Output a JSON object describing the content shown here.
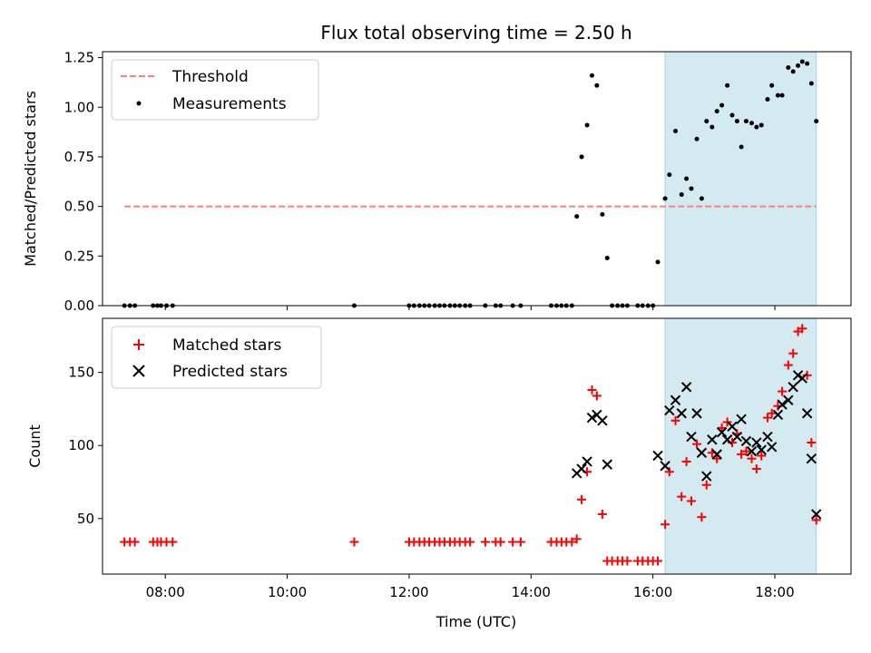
{
  "chart_data": {
    "type": "scatter",
    "title": "Flux total observing time = 2.50 h",
    "xlabel": "Time (UTC)",
    "x_ticks": [
      "08:00",
      "10:00",
      "12:00",
      "14:00",
      "16:00",
      "18:00"
    ],
    "x_tick_hours": [
      8,
      10,
      12,
      14,
      16,
      18
    ],
    "xlim_hours": [
      6.97,
      19.25
    ],
    "highlight_span_hours": [
      16.2,
      18.68
    ],
    "highlight_color": "#d2eaf0",
    "panels": [
      {
        "ylabel": "Matched/Predicted stars",
        "ylim": [
          0,
          1.28
        ],
        "y_ticks": [
          0.0,
          0.25,
          0.5,
          0.75,
          1.0,
          1.25
        ],
        "y_tick_labels": [
          "0.00",
          "0.25",
          "0.50",
          "0.75",
          "1.00",
          "1.25"
        ],
        "threshold": 0.5,
        "threshold_color": "#ff7f7f",
        "legend": {
          "placement": "top-left",
          "entries": [
            "Threshold",
            "Measurements"
          ]
        },
        "series": [
          {
            "name": "Measurements",
            "marker": "dot",
            "color": "#000000",
            "points": [
              [
                7.33,
                0
              ],
              [
                7.42,
                0
              ],
              [
                7.5,
                0
              ],
              [
                7.8,
                0
              ],
              [
                7.87,
                0
              ],
              [
                7.93,
                0
              ],
              [
                8.02,
                0
              ],
              [
                8.12,
                0
              ],
              [
                11.1,
                0
              ],
              [
                12.0,
                0
              ],
              [
                12.08,
                0
              ],
              [
                12.17,
                0
              ],
              [
                12.25,
                0
              ],
              [
                12.33,
                0
              ],
              [
                12.42,
                0
              ],
              [
                12.5,
                0
              ],
              [
                12.58,
                0
              ],
              [
                12.67,
                0
              ],
              [
                12.75,
                0
              ],
              [
                12.83,
                0
              ],
              [
                12.92,
                0
              ],
              [
                13.0,
                0
              ],
              [
                13.25,
                0
              ],
              [
                13.42,
                0
              ],
              [
                13.5,
                0
              ],
              [
                13.7,
                0
              ],
              [
                13.83,
                0
              ],
              [
                14.33,
                0
              ],
              [
                14.42,
                0
              ],
              [
                14.5,
                0
              ],
              [
                14.58,
                0
              ],
              [
                14.67,
                0
              ],
              [
                14.75,
                0.45
              ],
              [
                14.83,
                0.75
              ],
              [
                14.92,
                0.91
              ],
              [
                15.0,
                1.16
              ],
              [
                15.08,
                1.11
              ],
              [
                15.17,
                0.46
              ],
              [
                15.25,
                0.24
              ],
              [
                15.33,
                0
              ],
              [
                15.42,
                0
              ],
              [
                15.5,
                0
              ],
              [
                15.58,
                0
              ],
              [
                15.75,
                0
              ],
              [
                15.83,
                0
              ],
              [
                15.92,
                0
              ],
              [
                16.0,
                0
              ],
              [
                16.08,
                0.22
              ],
              [
                16.2,
                0.54
              ],
              [
                16.27,
                0.66
              ],
              [
                16.37,
                0.88
              ],
              [
                16.47,
                0.56
              ],
              [
                16.55,
                0.64
              ],
              [
                16.63,
                0.59
              ],
              [
                16.72,
                0.84
              ],
              [
                16.8,
                0.54
              ],
              [
                16.88,
                0.93
              ],
              [
                16.97,
                0.9
              ],
              [
                17.05,
                0.98
              ],
              [
                17.13,
                1.01
              ],
              [
                17.22,
                1.11
              ],
              [
                17.3,
                0.96
              ],
              [
                17.38,
                0.93
              ],
              [
                17.45,
                0.8
              ],
              [
                17.53,
                0.93
              ],
              [
                17.62,
                0.92
              ],
              [
                17.7,
                0.9
              ],
              [
                17.78,
                0.91
              ],
              [
                17.88,
                1.04
              ],
              [
                17.95,
                1.11
              ],
              [
                18.05,
                1.06
              ],
              [
                18.12,
                1.06
              ],
              [
                18.22,
                1.2
              ],
              [
                18.3,
                1.18
              ],
              [
                18.38,
                1.21
              ],
              [
                18.45,
                1.23
              ],
              [
                18.53,
                1.22
              ],
              [
                18.6,
                1.12
              ],
              [
                18.68,
                0.93
              ]
            ]
          }
        ]
      },
      {
        "ylabel": "Count",
        "ylim": [
          12,
          187
        ],
        "y_ticks": [
          50,
          100,
          150
        ],
        "y_tick_labels": [
          "50",
          "100",
          "150"
        ],
        "legend": {
          "placement": "top-left",
          "entries": [
            "Matched stars",
            "Predicted stars"
          ]
        },
        "series": [
          {
            "name": "Matched stars",
            "marker": "plus",
            "color": "#ff0000",
            "points": [
              [
                7.33,
                34
              ],
              [
                7.42,
                34
              ],
              [
                7.5,
                34
              ],
              [
                7.8,
                34
              ],
              [
                7.87,
                34
              ],
              [
                7.93,
                34
              ],
              [
                8.02,
                34
              ],
              [
                8.12,
                34
              ],
              [
                11.1,
                34
              ],
              [
                12.0,
                34
              ],
              [
                12.08,
                34
              ],
              [
                12.17,
                34
              ],
              [
                12.25,
                34
              ],
              [
                12.33,
                34
              ],
              [
                12.42,
                34
              ],
              [
                12.5,
                34
              ],
              [
                12.58,
                34
              ],
              [
                12.67,
                34
              ],
              [
                12.75,
                34
              ],
              [
                12.83,
                34
              ],
              [
                12.92,
                34
              ],
              [
                13.0,
                34
              ],
              [
                13.25,
                34
              ],
              [
                13.42,
                34
              ],
              [
                13.5,
                34
              ],
              [
                13.7,
                34
              ],
              [
                13.83,
                34
              ],
              [
                14.33,
                34
              ],
              [
                14.42,
                34
              ],
              [
                14.5,
                34
              ],
              [
                14.58,
                34
              ],
              [
                14.67,
                34
              ],
              [
                14.75,
                36
              ],
              [
                14.83,
                63
              ],
              [
                14.92,
                82
              ],
              [
                15.0,
                138
              ],
              [
                15.08,
                134
              ],
              [
                15.17,
                53
              ],
              [
                15.25,
                21
              ],
              [
                15.33,
                21
              ],
              [
                15.42,
                21
              ],
              [
                15.5,
                21
              ],
              [
                15.58,
                21
              ],
              [
                15.75,
                21
              ],
              [
                15.83,
                21
              ],
              [
                15.92,
                21
              ],
              [
                16.0,
                21
              ],
              [
                16.08,
                21
              ],
              [
                16.2,
                46
              ],
              [
                16.27,
                82
              ],
              [
                16.37,
                117
              ],
              [
                16.47,
                65
              ],
              [
                16.55,
                89
              ],
              [
                16.63,
                62
              ],
              [
                16.72,
                101
              ],
              [
                16.8,
                51
              ],
              [
                16.88,
                73
              ],
              [
                16.97,
                95
              ],
              [
                17.05,
                91
              ],
              [
                17.13,
                112
              ],
              [
                17.22,
                116
              ],
              [
                17.3,
                102
              ],
              [
                17.38,
                108
              ],
              [
                17.45,
                94
              ],
              [
                17.53,
                96
              ],
              [
                17.62,
                91
              ],
              [
                17.7,
                84
              ],
              [
                17.78,
                93
              ],
              [
                17.88,
                119
              ],
              [
                17.95,
                122
              ],
              [
                18.05,
                127
              ],
              [
                18.12,
                137
              ],
              [
                18.22,
                155
              ],
              [
                18.3,
                163
              ],
              [
                18.38,
                178
              ],
              [
                18.45,
                180
              ],
              [
                18.53,
                148
              ],
              [
                18.6,
                102
              ],
              [
                18.68,
                49
              ]
            ]
          },
          {
            "name": "Predicted stars",
            "marker": "x",
            "color": "#000000",
            "points": [
              [
                14.75,
                81
              ],
              [
                14.83,
                84
              ],
              [
                14.92,
                89
              ],
              [
                15.0,
                119
              ],
              [
                15.08,
                121
              ],
              [
                15.17,
                117
              ],
              [
                15.25,
                87
              ],
              [
                16.08,
                93
              ],
              [
                16.2,
                86
              ],
              [
                16.27,
                124
              ],
              [
                16.37,
                131
              ],
              [
                16.47,
                122
              ],
              [
                16.55,
                140
              ],
              [
                16.63,
                106
              ],
              [
                16.72,
                122
              ],
              [
                16.8,
                95
              ],
              [
                16.88,
                79
              ],
              [
                16.97,
                104
              ],
              [
                17.05,
                94
              ],
              [
                17.13,
                109
              ],
              [
                17.22,
                104
              ],
              [
                17.3,
                113
              ],
              [
                17.38,
                106
              ],
              [
                17.45,
                118
              ],
              [
                17.53,
                103
              ],
              [
                17.62,
                96
              ],
              [
                17.7,
                102
              ],
              [
                17.78,
                97
              ],
              [
                17.88,
                106
              ],
              [
                17.95,
                99
              ],
              [
                18.05,
                121
              ],
              [
                18.12,
                128
              ],
              [
                18.22,
                131
              ],
              [
                18.3,
                140
              ],
              [
                18.38,
                148
              ],
              [
                18.45,
                146
              ],
              [
                18.53,
                122
              ],
              [
                18.6,
                91
              ],
              [
                18.68,
                53
              ]
            ]
          }
        ]
      }
    ]
  }
}
